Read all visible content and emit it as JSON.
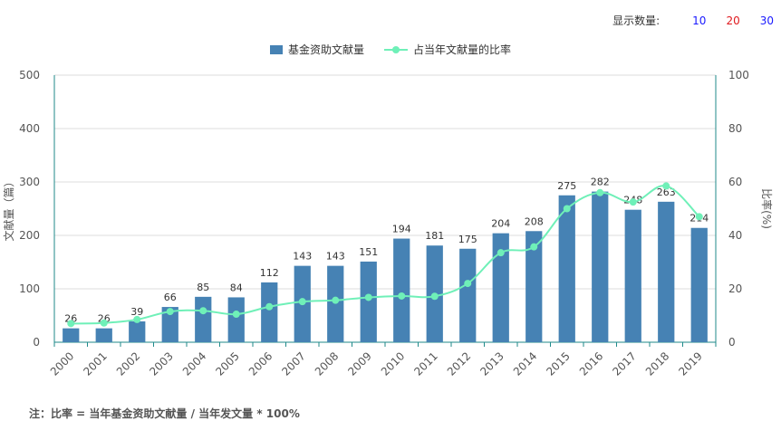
{
  "controls": {
    "label": "显示数量:",
    "options": [
      {
        "label": "10",
        "color": "#1a1aff"
      },
      {
        "label": "20",
        "color": "#e0191e"
      },
      {
        "label": "30",
        "color": "#1a1aff"
      }
    ]
  },
  "note": "注：比率 = 当年基金资助文献量 / 当年发文量 * 100%",
  "chart_data": {
    "type": "bar",
    "categories": [
      "2000",
      "2001",
      "2002",
      "2003",
      "2004",
      "2005",
      "2006",
      "2007",
      "2008",
      "2009",
      "2010",
      "2011",
      "2012",
      "2013",
      "2014",
      "2015",
      "2016",
      "2017",
      "2018",
      "2019"
    ],
    "series": [
      {
        "name": "基金资助文献量",
        "type": "bar",
        "axis": "left",
        "color": "#4682b4",
        "values": [
          26,
          26,
          39,
          66,
          85,
          84,
          112,
          143,
          143,
          151,
          194,
          181,
          175,
          204,
          208,
          275,
          282,
          248,
          263,
          214
        ]
      },
      {
        "name": "占当年文献量的比率",
        "type": "line",
        "axis": "right",
        "color": "#6ff0b8",
        "values": [
          7,
          7.2,
          8.5,
          11.5,
          11.8,
          10.5,
          13.3,
          15.2,
          15.7,
          16.8,
          17.3,
          17.2,
          22,
          33.5,
          35.7,
          50,
          56,
          52.5,
          58.5,
          47
        ]
      }
    ],
    "ylabel_left": "文献量（篇）",
    "ylabel_right": "比率(%)",
    "ylim_left": [
      0,
      500
    ],
    "ylim_right": [
      0,
      100
    ],
    "yticks_left": [
      "0",
      "100",
      "200",
      "300",
      "400",
      "500"
    ],
    "yticks_right": [
      "0",
      "20",
      "40",
      "60",
      "80",
      "100"
    ],
    "grid": true,
    "legend_position": "top-center"
  }
}
